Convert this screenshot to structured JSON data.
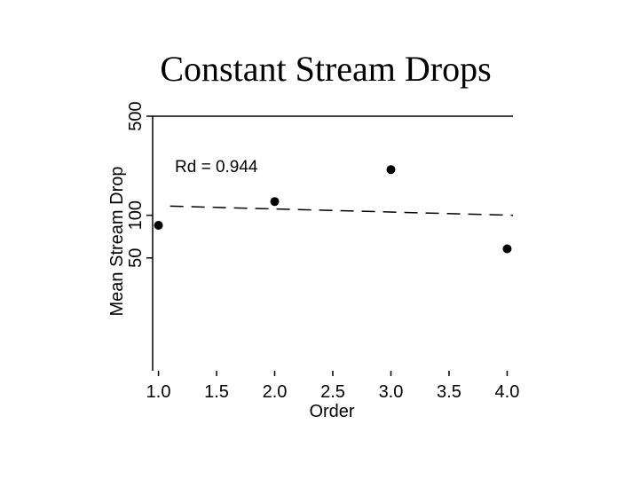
{
  "chart_data": {
    "type": "scatter",
    "title": "Constant Stream Drops",
    "xlabel": "Order",
    "ylabel": "Mean Stream Drop",
    "y_scale": "log",
    "xlim": [
      0.95,
      4.05
    ],
    "ylim": [
      8,
      500
    ],
    "x_ticks": [
      "1.0",
      "1.5",
      "2.0",
      "2.5",
      "3.0",
      "3.5",
      "4.0"
    ],
    "y_ticks": [
      "50",
      "100",
      "500"
    ],
    "annotation": "Rd = 0.944",
    "points": [
      {
        "x": 1.0,
        "y": 85
      },
      {
        "x": 2.0,
        "y": 125
      },
      {
        "x": 3.0,
        "y": 210
      },
      {
        "x": 4.0,
        "y": 58
      }
    ],
    "trend_line": {
      "style": "dashed",
      "x": [
        1.1,
        4.05
      ],
      "y": [
        116,
        100
      ]
    },
    "colors": {
      "points": "#000000",
      "axis": "#000000",
      "trend": "#000000"
    }
  }
}
